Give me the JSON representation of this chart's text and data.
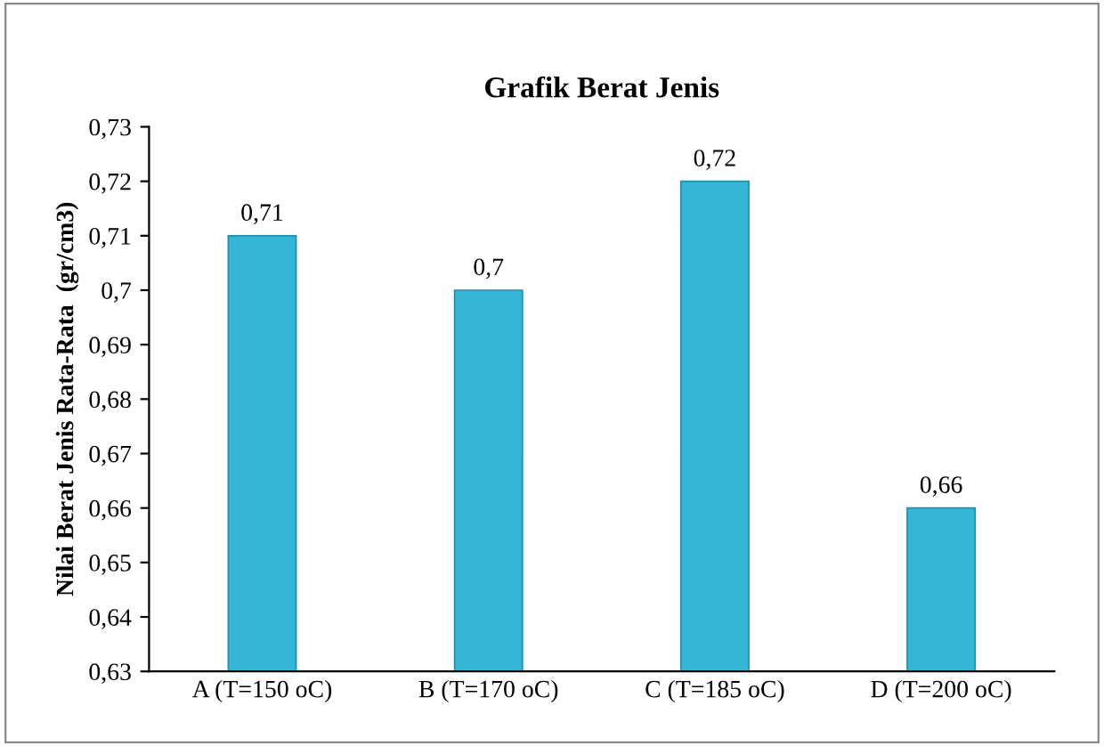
{
  "chart_data": {
    "type": "bar",
    "title": "Grafik Berat Jenis",
    "ylabel": "Nilai Berat Jenis Rata-Rata  (gr/cm3)",
    "categories": [
      "A (T=150 oC)",
      "B (T=170 oC)",
      "C (T=185 oC)",
      "D (T=200 oC)"
    ],
    "values": [
      0.71,
      0.7,
      0.72,
      0.66
    ],
    "value_labels": [
      "0,71",
      "0,7",
      "0,72",
      "0,66"
    ],
    "color": "#35b6d6",
    "ylim": [
      0.63,
      0.73
    ],
    "yticks": [
      {
        "value": 0.63,
        "label": "0,63"
      },
      {
        "value": 0.64,
        "label": "0,64"
      },
      {
        "value": 0.65,
        "label": "0,65"
      },
      {
        "value": 0.66,
        "label": "0,66"
      },
      {
        "value": 0.67,
        "label": "0,67"
      },
      {
        "value": 0.68,
        "label": "0,68"
      },
      {
        "value": 0.69,
        "label": "0,69"
      },
      {
        "value": 0.7,
        "label": "0,7"
      },
      {
        "value": 0.71,
        "label": "0,71"
      },
      {
        "value": 0.72,
        "label": "0,72"
      },
      {
        "value": 0.73,
        "label": "0,73"
      }
    ],
    "grid": false,
    "legend": false
  }
}
